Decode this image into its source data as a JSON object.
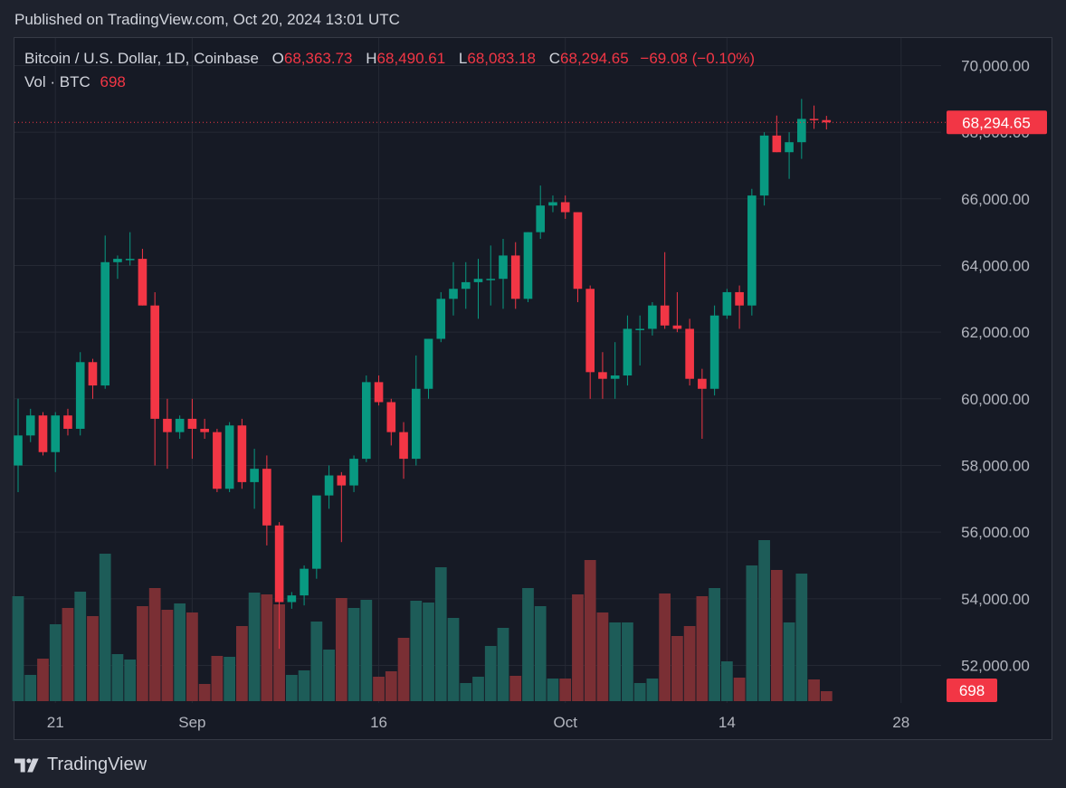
{
  "header": {
    "published": "Published on TradingView.com, Oct 20, 2024 13:01 UTC"
  },
  "legend": {
    "symbol": "Bitcoin / U.S. Dollar, 1D, Coinbase",
    "o_key": "O",
    "o_val": "68,363.73",
    "h_key": "H",
    "h_val": "68,490.61",
    "l_key": "L",
    "l_val": "68,083.18",
    "c_key": "C",
    "c_val": "68,294.65",
    "change": "−69.08 (−0.10%)",
    "vol_label": "Vol · BTC",
    "vol_val": "698"
  },
  "footer": {
    "brand": "TradingView"
  },
  "colors": {
    "up": "#089981",
    "down": "#f23645",
    "vol_up": "#1d5c58",
    "vol_down": "#7a2f34",
    "grid": "#252934",
    "background": "#161a25"
  },
  "chart_data": {
    "type": "candlestick",
    "price_axis": {
      "ticks": [
        "52,000.00",
        "54,000.00",
        "56,000.00",
        "58,000.00",
        "60,000.00",
        "62,000.00",
        "64,000.00",
        "66,000.00",
        "68,000.00",
        "70,000.00"
      ],
      "range": [
        50900,
        70800
      ],
      "last_price_label": "68,294.65"
    },
    "time_axis": {
      "labels": [
        {
          "text": "21",
          "day": 3
        },
        {
          "text": "Sep",
          "day": 14
        },
        {
          "text": "16",
          "day": 29
        },
        {
          "text": "Oct",
          "day": 44
        },
        {
          "text": "14",
          "day": 57
        },
        {
          "text": "28",
          "day": 71
        }
      ],
      "visible_days": [
        0,
        74
      ]
    },
    "volume": {
      "last_label": "698"
    },
    "candles": [
      {
        "o": 58000,
        "h": 60000,
        "l": 57200,
        "c": 58900,
        "v": 1160
      },
      {
        "o": 58900,
        "h": 59700,
        "l": 58700,
        "c": 59500,
        "v": 290
      },
      {
        "o": 59500,
        "h": 59600,
        "l": 58300,
        "c": 58400,
        "v": 470
      },
      {
        "o": 58400,
        "h": 59600,
        "l": 57800,
        "c": 59500,
        "v": 850
      },
      {
        "o": 59500,
        "h": 59700,
        "l": 58900,
        "c": 59100,
        "v": 1030
      },
      {
        "o": 59100,
        "h": 61400,
        "l": 58900,
        "c": 61100,
        "v": 1210
      },
      {
        "o": 61100,
        "h": 61200,
        "l": 60000,
        "c": 60400,
        "v": 940
      },
      {
        "o": 60400,
        "h": 64900,
        "l": 60300,
        "c": 64100,
        "v": 1630
      },
      {
        "o": 64100,
        "h": 64300,
        "l": 63600,
        "c": 64200,
        "v": 520
      },
      {
        "o": 64200,
        "h": 65000,
        "l": 64000,
        "c": 64200,
        "v": 460
      },
      {
        "o": 64200,
        "h": 64500,
        "l": 62800,
        "c": 62800,
        "v": 1050
      },
      {
        "o": 62800,
        "h": 63200,
        "l": 58000,
        "c": 59400,
        "v": 1250
      },
      {
        "o": 59400,
        "h": 60000,
        "l": 57900,
        "c": 59000,
        "v": 1010
      },
      {
        "o": 59000,
        "h": 59500,
        "l": 58800,
        "c": 59400,
        "v": 1080
      },
      {
        "o": 59400,
        "h": 60000,
        "l": 58200,
        "c": 59100,
        "v": 980
      },
      {
        "o": 59100,
        "h": 59400,
        "l": 58800,
        "c": 59000,
        "v": 190
      },
      {
        "o": 59000,
        "h": 59100,
        "l": 57200,
        "c": 57300,
        "v": 500
      },
      {
        "o": 57300,
        "h": 59300,
        "l": 57200,
        "c": 59200,
        "v": 490
      },
      {
        "o": 59200,
        "h": 59400,
        "l": 57300,
        "c": 57500,
        "v": 830
      },
      {
        "o": 57500,
        "h": 58500,
        "l": 56700,
        "c": 57900,
        "v": 1200
      },
      {
        "o": 57900,
        "h": 58300,
        "l": 55600,
        "c": 56200,
        "v": 1180
      },
      {
        "o": 56200,
        "h": 56300,
        "l": 52500,
        "c": 53900,
        "v": 1070
      },
      {
        "o": 53900,
        "h": 54200,
        "l": 53700,
        "c": 54100,
        "v": 290
      },
      {
        "o": 54100,
        "h": 55000,
        "l": 53800,
        "c": 54900,
        "v": 340
      },
      {
        "o": 54900,
        "h": 57000,
        "l": 54600,
        "c": 57100,
        "v": 880
      },
      {
        "o": 57100,
        "h": 58000,
        "l": 56700,
        "c": 57700,
        "v": 570
      },
      {
        "o": 57700,
        "h": 57800,
        "l": 55700,
        "c": 57400,
        "v": 1140
      },
      {
        "o": 57400,
        "h": 58300,
        "l": 57200,
        "c": 58200,
        "v": 1030
      },
      {
        "o": 58200,
        "h": 60700,
        "l": 58100,
        "c": 60500,
        "v": 1120
      },
      {
        "o": 60500,
        "h": 60700,
        "l": 59800,
        "c": 59900,
        "v": 270
      },
      {
        "o": 59900,
        "h": 60000,
        "l": 58600,
        "c": 59000,
        "v": 330
      },
      {
        "o": 59000,
        "h": 59300,
        "l": 57600,
        "c": 58200,
        "v": 700
      },
      {
        "o": 58200,
        "h": 61300,
        "l": 58000,
        "c": 60300,
        "v": 1110
      },
      {
        "o": 60300,
        "h": 61800,
        "l": 60000,
        "c": 61800,
        "v": 1090
      },
      {
        "o": 61800,
        "h": 63200,
        "l": 61700,
        "c": 63000,
        "v": 1480
      },
      {
        "o": 63000,
        "h": 64100,
        "l": 62500,
        "c": 63300,
        "v": 920
      },
      {
        "o": 63300,
        "h": 64100,
        "l": 62700,
        "c": 63500,
        "v": 200
      },
      {
        "o": 63500,
        "h": 64200,
        "l": 62400,
        "c": 63600,
        "v": 270
      },
      {
        "o": 63600,
        "h": 64600,
        "l": 62800,
        "c": 63600,
        "v": 610
      },
      {
        "o": 63600,
        "h": 64800,
        "l": 62700,
        "c": 64300,
        "v": 810
      },
      {
        "o": 64300,
        "h": 64700,
        "l": 62700,
        "c": 63000,
        "v": 280
      },
      {
        "o": 63000,
        "h": 65000,
        "l": 62900,
        "c": 65000,
        "v": 1250
      },
      {
        "o": 65000,
        "h": 66400,
        "l": 64800,
        "c": 65800,
        "v": 1050
      },
      {
        "o": 65800,
        "h": 66100,
        "l": 65600,
        "c": 65900,
        "v": 250
      },
      {
        "o": 65900,
        "h": 66100,
        "l": 65400,
        "c": 65600,
        "v": 250
      },
      {
        "o": 65600,
        "h": 65600,
        "l": 62900,
        "c": 63300,
        "v": 1180
      },
      {
        "o": 63300,
        "h": 63400,
        "l": 60000,
        "c": 60800,
        "v": 1560
      },
      {
        "o": 60800,
        "h": 61400,
        "l": 60000,
        "c": 60600,
        "v": 980
      },
      {
        "o": 60600,
        "h": 61700,
        "l": 60000,
        "c": 60700,
        "v": 870
      },
      {
        "o": 60700,
        "h": 62500,
        "l": 60400,
        "c": 62100,
        "v": 870
      },
      {
        "o": 62100,
        "h": 62500,
        "l": 61000,
        "c": 62100,
        "v": 200
      },
      {
        "o": 62100,
        "h": 62900,
        "l": 61900,
        "c": 62800,
        "v": 250
      },
      {
        "o": 62800,
        "h": 64400,
        "l": 62100,
        "c": 62200,
        "v": 1190
      },
      {
        "o": 62200,
        "h": 63200,
        "l": 62000,
        "c": 62100,
        "v": 720
      },
      {
        "o": 62100,
        "h": 62400,
        "l": 60400,
        "c": 60600,
        "v": 830
      },
      {
        "o": 60600,
        "h": 60900,
        "l": 58800,
        "c": 60300,
        "v": 1160
      },
      {
        "o": 60300,
        "h": 62800,
        "l": 60100,
        "c": 62500,
        "v": 1250
      },
      {
        "o": 62500,
        "h": 63300,
        "l": 62400,
        "c": 63200,
        "v": 440
      },
      {
        "o": 63200,
        "h": 63400,
        "l": 62100,
        "c": 62800,
        "v": 260
      },
      {
        "o": 62800,
        "h": 66300,
        "l": 62500,
        "c": 66100,
        "v": 1500
      },
      {
        "o": 66100,
        "h": 68000,
        "l": 65800,
        "c": 67900,
        "v": 1780
      },
      {
        "o": 67900,
        "h": 68500,
        "l": 67400,
        "c": 67400,
        "v": 1450
      },
      {
        "o": 67400,
        "h": 68000,
        "l": 66600,
        "c": 67700,
        "v": 870
      },
      {
        "o": 67700,
        "h": 69000,
        "l": 67200,
        "c": 68400,
        "v": 1410
      },
      {
        "o": 68400,
        "h": 68800,
        "l": 68100,
        "c": 68363.73,
        "v": 240
      },
      {
        "o": 68363.73,
        "h": 68490.61,
        "l": 68083.18,
        "c": 68294.65,
        "v": 110
      }
    ]
  }
}
